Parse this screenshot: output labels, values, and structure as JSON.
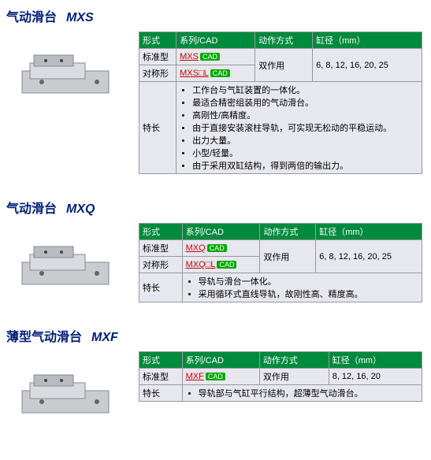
{
  "sections": [
    {
      "cat": "气动滑台",
      "series": "MXS",
      "headers": [
        "形式",
        "系列/CAD",
        "动作方式",
        "缸径（mm）"
      ],
      "row1_label": "标准型",
      "row1_link": "MXS",
      "row2_label": "对称形",
      "row2_link": "MXS□L",
      "action": "双作用",
      "bore": "6, 8, 12, 16, 20, 25",
      "feat_label": "特长",
      "features": [
        "工作台与气缸装置的一体化。",
        "最适合精密组装用的气动滑台。",
        "高刚性/高精度。",
        "由于直接安装滚柱导轨，可实现无松动的平稳运动。",
        "出力大量。",
        "小型/轻量。",
        "由于采用双缸结构，得到两倍的输出力。"
      ]
    },
    {
      "cat": "气动滑台",
      "series": "MXQ",
      "headers": [
        "形式",
        "系列/CAD",
        "动作方式",
        "缸径（mm）"
      ],
      "row1_label": "标准型",
      "row1_link": "MXQ",
      "row2_label": "对称形",
      "row2_link": "MXQ□L",
      "action": "双作用",
      "bore": "6, 8, 12, 16, 20, 25",
      "feat_label": "特长",
      "features": [
        "导轨与滑台一体化。",
        "采用循环式直线导轨，故刚性高、精度高。"
      ]
    },
    {
      "cat": "薄型气动滑台",
      "series": "MXF",
      "headers": [
        "形式",
        "系列/CAD",
        "动作方式",
        "缸径（mm）"
      ],
      "row1_label": "标准型",
      "row1_link": "MXF",
      "row2_label": null,
      "row2_link": null,
      "action": "双作用",
      "bore": "8, 12, 16, 20",
      "feat_label": "特长",
      "features": [
        "导轨部与气缸平行结构，超薄型气动滑台。"
      ]
    }
  ],
  "cad_label": "CAD"
}
